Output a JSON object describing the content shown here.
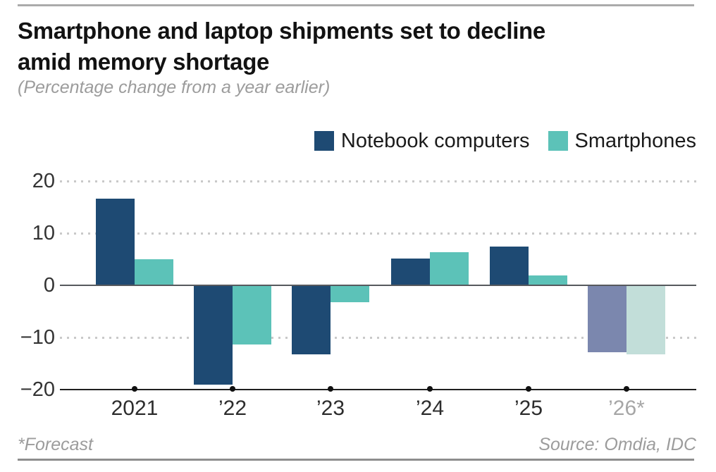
{
  "chart_data": {
    "type": "bar",
    "title_lines": [
      "Smartphone and laptop shipments set to decline",
      "amid memory shortage"
    ],
    "subtitle": "(Percentage change from a year earlier)",
    "categories": [
      "2021",
      "’22",
      "’23",
      "’24",
      "’25",
      "’26*"
    ],
    "series": [
      {
        "name": "Notebook computers",
        "color": "#1e4a73",
        "forecast_color": "#7b87ae",
        "values": [
          16.6,
          -19.1,
          -13.2,
          5.2,
          7.4,
          -12.8
        ]
      },
      {
        "name": "Smartphones",
        "color": "#5cc2b8",
        "forecast_color": "#c2ded9",
        "values": [
          5.0,
          -11.3,
          -3.3,
          6.4,
          1.9,
          -13.2
        ]
      }
    ],
    "forecast_index": 5,
    "ylabel": "",
    "xlabel": "",
    "ylim": [
      -20,
      20
    ],
    "yticks": [
      20,
      10,
      0,
      -10,
      -20
    ],
    "grid": "dotted horizontal",
    "legend_position": "top-right",
    "footnote": "*Forecast",
    "source": "Source: Omdia, IDC",
    "colors": {
      "grid": "#c9c9c9",
      "zero_line": "#56595d",
      "axis": "#1f1f1f",
      "muted_text": "#a6a6a6",
      "text": "#121212"
    }
  }
}
